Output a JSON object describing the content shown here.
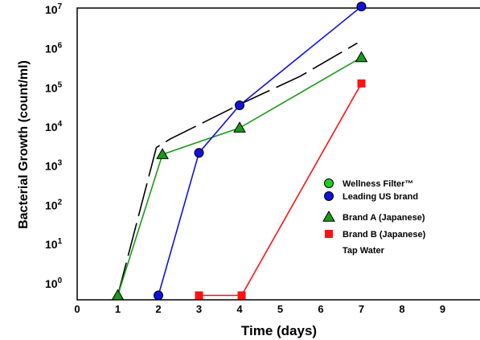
{
  "chart_data": {
    "type": "line",
    "xlabel": "Time (days)",
    "ylabel": "Bacterial Growth (count/ml)",
    "y_scale": "log",
    "xlim": [
      0,
      10
    ],
    "ylim": [
      0.5,
      12000000
    ],
    "x_ticks": [
      "0",
      "1",
      "2",
      "3",
      "4",
      "5",
      "6",
      "7",
      "8",
      "9"
    ],
    "y_ticks": [
      {
        "value": 1,
        "base": "10",
        "exp": "0"
      },
      {
        "value": 10,
        "base": "10",
        "exp": "1"
      },
      {
        "value": 100,
        "base": "10",
        "exp": "2"
      },
      {
        "value": 1000,
        "base": "10",
        "exp": "3"
      },
      {
        "value": 10000,
        "base": "10",
        "exp": "4"
      },
      {
        "value": 100000,
        "base": "10",
        "exp": "5"
      },
      {
        "value": 1000000,
        "base": "10",
        "exp": "6"
      },
      {
        "value": 10000000,
        "base": "10",
        "exp": "7"
      }
    ],
    "grid": false,
    "legend_position": "bottom-right",
    "series": [
      {
        "name": "Wellness Filter™",
        "color": "#22cc22",
        "marker": "circle",
        "line": "none",
        "points": []
      },
      {
        "name": "Leading US brand",
        "color": "#1111dd",
        "marker": "circle",
        "line": "solid",
        "points": [
          [
            2,
            0.5
          ],
          [
            3,
            2200
          ],
          [
            4,
            36000
          ],
          [
            7,
            12000000
          ]
        ]
      },
      {
        "name": "Brand A (Japanese)",
        "color": "#1a9a1a",
        "marker": "triangle",
        "line": "solid",
        "points": [
          [
            1,
            0.5
          ],
          [
            2.1,
            2000
          ],
          [
            4,
            9500
          ],
          [
            7,
            600000
          ]
        ]
      },
      {
        "name": "Brand B (Japanese)",
        "color": "#ff1111",
        "marker": "square",
        "line": "solid",
        "points": [
          [
            3,
            0.5
          ],
          [
            4.05,
            0.5
          ],
          [
            7,
            130000
          ]
        ]
      },
      {
        "name": "Tap Water",
        "color": "#000000",
        "marker": "none",
        "line": "dashed",
        "points": [
          [
            1,
            0.5
          ],
          [
            1.95,
            3000
          ],
          [
            2.3,
            5000
          ],
          [
            4.05,
            40000
          ],
          [
            5.5,
            200000
          ],
          [
            6.9,
            1400000
          ]
        ]
      }
    ]
  }
}
